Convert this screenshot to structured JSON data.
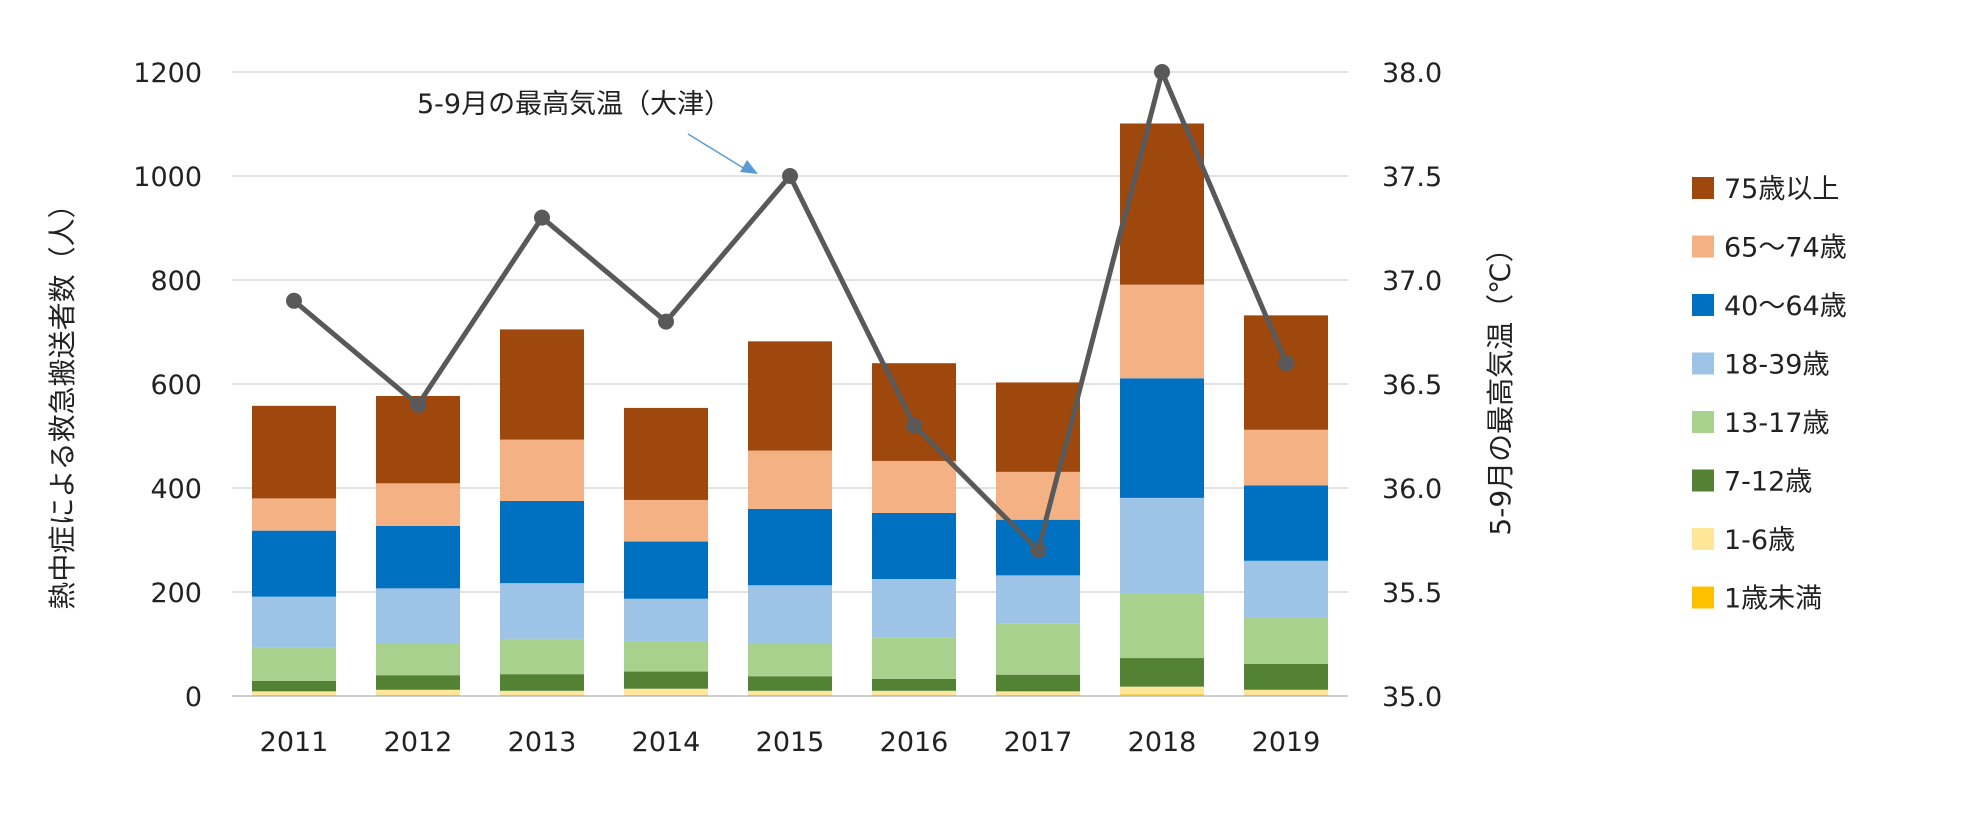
{
  "chart_data": {
    "type": "bar",
    "stacked": true,
    "categories": [
      "2011",
      "2012",
      "2013",
      "2014",
      "2015",
      "2016",
      "2017",
      "2018",
      "2019"
    ],
    "ylabel": "熱中症による救急搬送者数（人）",
    "y2label": "5-9月の最高気温（℃）",
    "ylim": [
      0,
      1200
    ],
    "y2lim": [
      35.0,
      38.0
    ],
    "yticks": [
      "0",
      "200",
      "400",
      "600",
      "800",
      "1000",
      "1200"
    ],
    "y2ticks": [
      "35.0",
      "35.5",
      "36.0",
      "36.5",
      "37.0",
      "37.5",
      "38.0"
    ],
    "grid": true,
    "legend_position": "right",
    "series": [
      {
        "name": "1歳未満",
        "color": "#FFC000",
        "values": [
          2,
          2,
          2,
          2,
          2,
          2,
          2,
          3,
          2
        ]
      },
      {
        "name": "1-6歳",
        "color": "#FFE699",
        "values": [
          7,
          10,
          8,
          12,
          8,
          8,
          7,
          15,
          10
        ]
      },
      {
        "name": "7-12歳",
        "color": "#548235",
        "values": [
          20,
          28,
          32,
          33,
          28,
          23,
          32,
          55,
          50
        ]
      },
      {
        "name": "13-17歳",
        "color": "#A9D18E",
        "values": [
          65,
          60,
          68,
          57,
          62,
          80,
          98,
          125,
          90
        ]
      },
      {
        "name": "18-39歳",
        "color": "#9DC3E6",
        "values": [
          97,
          107,
          107,
          83,
          113,
          112,
          93,
          183,
          108
        ]
      },
      {
        "name": "40〜64歳",
        "color": "#0070C0",
        "values": [
          127,
          120,
          158,
          110,
          147,
          127,
          107,
          230,
          145
        ]
      },
      {
        "name": "65〜74歳",
        "color": "#F4B183",
        "values": [
          62,
          82,
          118,
          80,
          112,
          100,
          92,
          180,
          107
        ]
      },
      {
        "name": "75歳以上",
        "color": "#9E480E",
        "values": [
          178,
          168,
          212,
          177,
          210,
          188,
          172,
          310,
          220
        ]
      }
    ],
    "line_series": {
      "name": "5-9月の最高気温（大津）",
      "axis": "right",
      "color": "#595959",
      "values": [
        36.9,
        36.4,
        37.3,
        36.8,
        37.5,
        36.3,
        35.7,
        38.0,
        36.6
      ]
    },
    "annotation": "5-9月の最高気温（大津）"
  }
}
